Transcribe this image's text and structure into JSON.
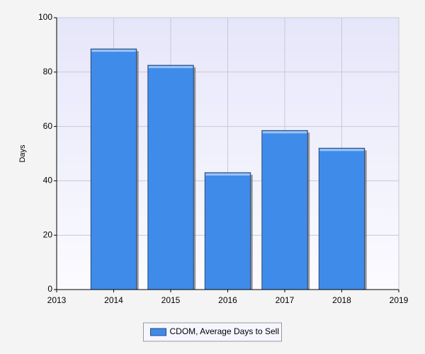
{
  "chart_data": {
    "type": "bar",
    "x": [
      2014,
      2015,
      2016,
      2017,
      2018
    ],
    "series": [
      {
        "name": "CDOM, Average Days to Sell",
        "color": "#3f8bea",
        "values": [
          88.5,
          82.5,
          43,
          58.5,
          52
        ]
      }
    ],
    "xlim": [
      2013,
      2019
    ],
    "xticks": [
      2013,
      2014,
      2015,
      2016,
      2017,
      2018,
      2019
    ],
    "ylim": [
      0,
      100
    ],
    "yticks": [
      0,
      20,
      40,
      60,
      80,
      100
    ],
    "ylabel": "Days",
    "grid": true,
    "legend": "bottom"
  }
}
